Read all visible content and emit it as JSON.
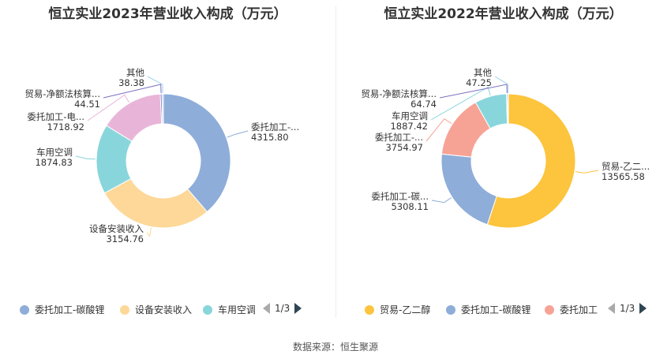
{
  "source": "数据来源：恒生聚源",
  "chart_data": [
    {
      "type": "pie",
      "title": "恒立实业2023年营业收入构成（万元）",
      "slices": [
        {
          "name": "委托加工-碳酸锂",
          "label": "委托加工-...",
          "value": 4315.8,
          "value_text": "4315.80",
          "color": "#8eadd9"
        },
        {
          "name": "设备安装收入",
          "label": "设备安装收入",
          "value": 3154.76,
          "value_text": "3154.76",
          "color": "#fdd898"
        },
        {
          "name": "车用空调",
          "label": "车用空调",
          "value": 1874.83,
          "value_text": "1874.83",
          "color": "#88d6dc"
        },
        {
          "name": "委托加工-电",
          "label": "委托加工-电...",
          "value": 1718.92,
          "value_text": "1718.92",
          "color": "#e8b5d8"
        },
        {
          "name": "贸易-净额法核算",
          "label": "贸易-净额法核算...",
          "value": 44.51,
          "value_text": "44.51",
          "color": "#7e6fc0"
        },
        {
          "name": "其他",
          "label": "其他",
          "value": 38.38,
          "value_text": "38.38",
          "color": "#9fd3ee"
        }
      ],
      "legend": {
        "items": [
          {
            "label": "委托加工-碳酸锂",
            "color": "#8eadd9"
          },
          {
            "label": "设备安装收入",
            "color": "#fdd898"
          },
          {
            "label": "车用空调",
            "color": "#88d6dc"
          }
        ],
        "page": "1/3"
      }
    },
    {
      "type": "pie",
      "title": "恒立实业2022年营业收入构成（万元）",
      "slices": [
        {
          "name": "贸易-乙二醇",
          "label": "贸易-乙二...",
          "value": 13565.58,
          "value_text": "13565.58",
          "color": "#fdc43d"
        },
        {
          "name": "委托加工-碳酸锂",
          "label": "委托加工-碳...",
          "value": 5308.11,
          "value_text": "5308.11",
          "color": "#8eadd9"
        },
        {
          "name": "委托加工",
          "label": "委托加工-...",
          "value": 3754.97,
          "value_text": "3754.97",
          "color": "#f6a396"
        },
        {
          "name": "车用空调",
          "label": "车用空调",
          "value": 1887.42,
          "value_text": "1887.42",
          "color": "#88d6dc"
        },
        {
          "name": "贸易-净额法核算",
          "label": "贸易-净额法核算...",
          "value": 64.74,
          "value_text": "64.74",
          "color": "#7e6fc0"
        },
        {
          "name": "其他",
          "label": "其他",
          "value": 47.25,
          "value_text": "47.25",
          "color": "#9fd3ee"
        }
      ],
      "legend": {
        "items": [
          {
            "label": "贸易-乙二醇",
            "color": "#fdc43d"
          },
          {
            "label": "委托加工-碳酸锂",
            "color": "#8eadd9"
          },
          {
            "label": "委托加工",
            "color": "#f6a396"
          }
        ],
        "page": "1/3"
      }
    }
  ]
}
